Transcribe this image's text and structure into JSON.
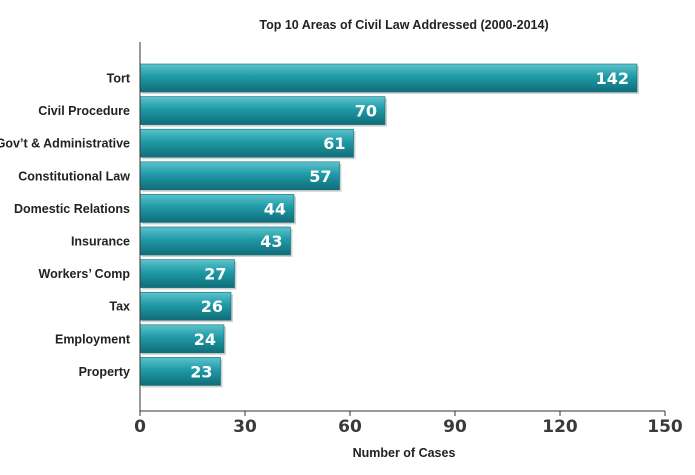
{
  "chart_data": {
    "type": "bar",
    "orientation": "horizontal",
    "title": "Top 10 Areas of Civil Law Addressed (2000-2014)",
    "xlabel": "Number of Cases",
    "ylabel": "",
    "categories": [
      "Tort",
      "Civil Procedure",
      "Gov’t & Administrative",
      "Constitutional Law",
      "Domestic Relations",
      "Insurance",
      "Workers’ Comp",
      "Tax",
      "Employment",
      "Property"
    ],
    "values": [
      142,
      70,
      61,
      57,
      44,
      43,
      27,
      26,
      24,
      23
    ],
    "xlim": [
      0,
      150
    ],
    "xticks": [
      0,
      30,
      60,
      90,
      120,
      150
    ],
    "grid": false,
    "legend": "none",
    "bar_color": "#1f9aa6",
    "bar_color_dark": "#0f6d78",
    "bar_color_light": "#5cc3cc"
  }
}
